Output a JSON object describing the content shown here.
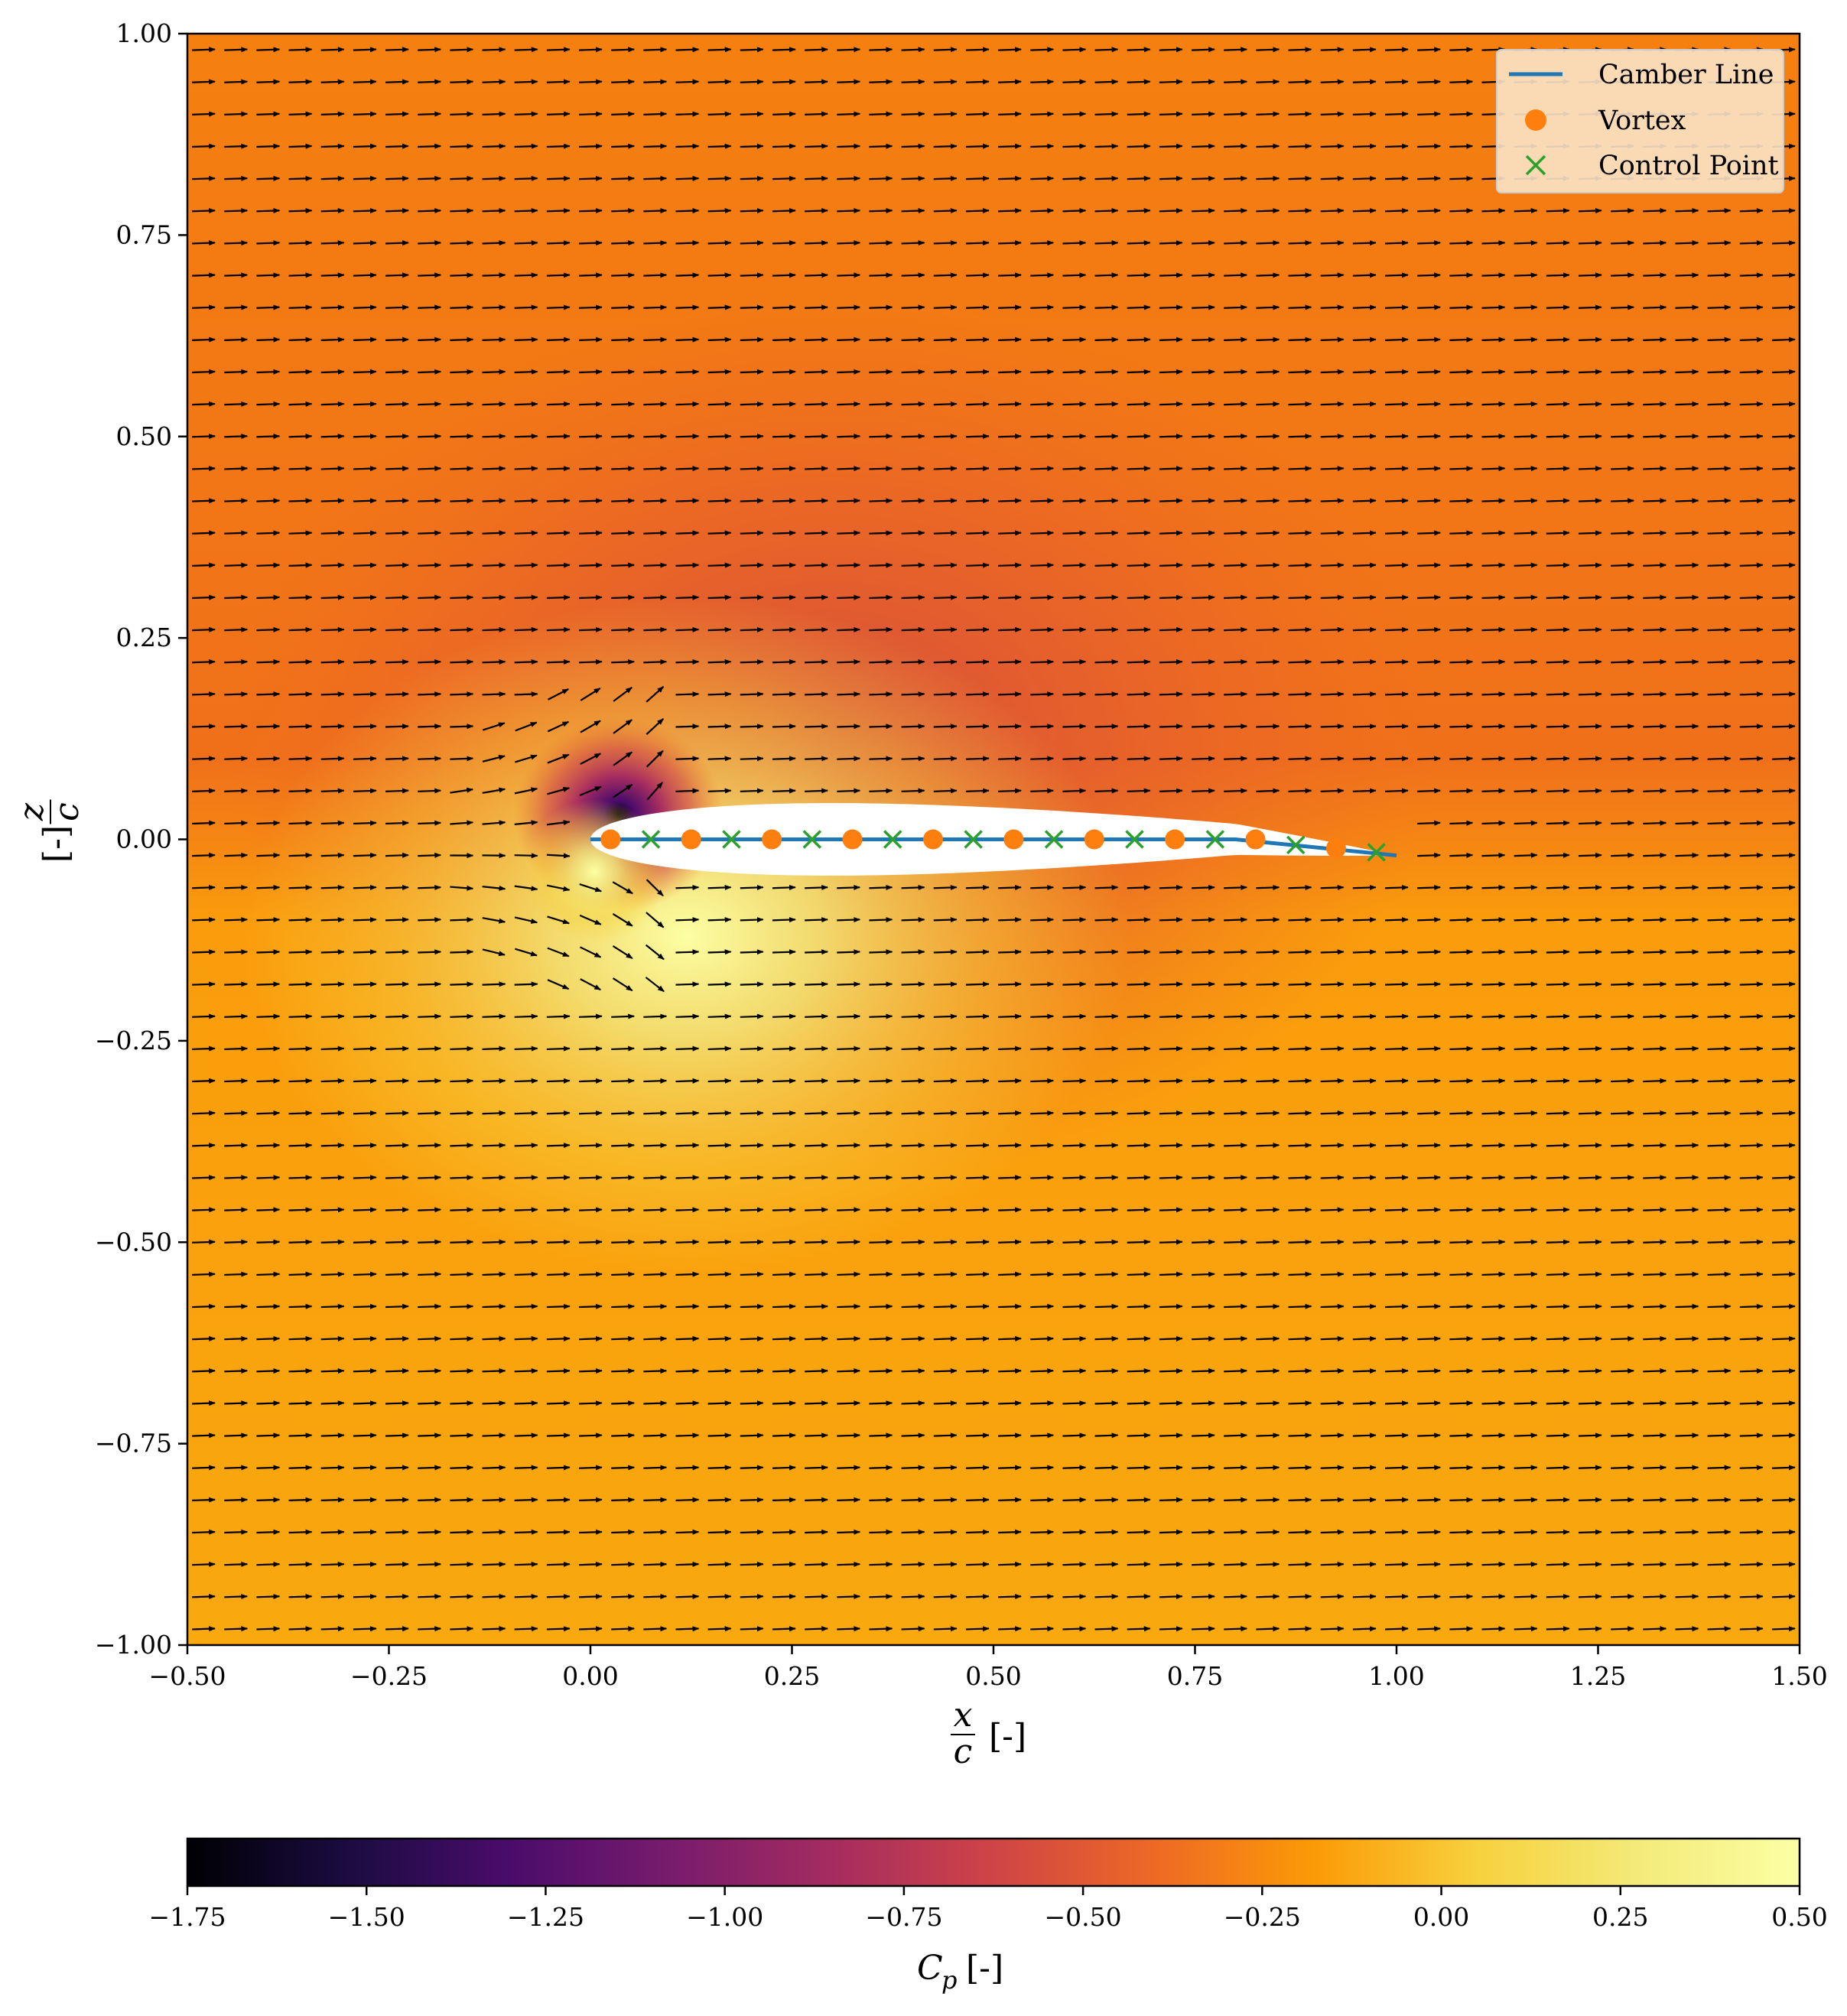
{
  "chart_data": {
    "type": "heatmap",
    "title": "",
    "xlabel": {
      "num": "x",
      "den": "c",
      "unit": "[-]"
    },
    "ylabel": {
      "num": "z",
      "den": "c",
      "unit": "[-]"
    },
    "xlim": [
      -0.5,
      1.5
    ],
    "ylim": [
      -1.0,
      1.0
    ],
    "xticks": [
      "−0.50",
      "−0.25",
      "0.00",
      "0.25",
      "0.50",
      "0.75",
      "1.00",
      "1.25",
      "1.50"
    ],
    "yticks": [
      "1.00",
      "0.75",
      "0.50",
      "0.25",
      "0.00",
      "−0.25",
      "−0.50",
      "−0.75",
      "−1.00"
    ],
    "colorbar": {
      "label": "C",
      "label_sub": "p",
      "unit": "[-]",
      "range": [
        -1.75,
        0.5
      ],
      "colormap": "inferno",
      "ticks": [
        "−1.75",
        "−1.50",
        "−1.25",
        "−1.00",
        "−0.75",
        "−0.50",
        "−0.25",
        "0.00",
        "0.25",
        "0.50"
      ]
    },
    "legend": {
      "position": "top-right",
      "entries": [
        {
          "name": "Camber Line",
          "marker": "line",
          "color": "#1f77b4"
        },
        {
          "name": "Vortex",
          "marker": "circle",
          "color": "#ff7f0e"
        },
        {
          "name": "Control Point",
          "marker": "x",
          "color": "#2ca02c"
        }
      ]
    },
    "camber_line": {
      "x": [
        0.0,
        0.05,
        0.1,
        0.2,
        0.3,
        0.4,
        0.5,
        0.6,
        0.7,
        0.8,
        0.85,
        0.9,
        0.95,
        1.0
      ],
      "y": [
        0.0,
        0.0,
        0.0,
        0.0,
        0.0,
        0.0,
        0.0,
        0.0,
        0.0,
        0.0,
        -0.005,
        -0.01,
        -0.015,
        -0.02
      ]
    },
    "vortices": {
      "x": [
        0.025,
        0.125,
        0.225,
        0.325,
        0.425,
        0.525,
        0.625,
        0.725,
        0.825,
        0.925
      ],
      "y": [
        0.0,
        0.0,
        0.0,
        0.0,
        0.0,
        0.0,
        0.0,
        0.0,
        0.0,
        -0.011
      ]
    },
    "control_points": {
      "x": [
        0.075,
        0.175,
        0.275,
        0.375,
        0.475,
        0.575,
        0.675,
        0.775,
        0.875,
        0.975
      ],
      "y": [
        0.0,
        0.0,
        0.0,
        0.0,
        0.0,
        0.0,
        0.0,
        0.0,
        -0.007,
        -0.016
      ]
    },
    "airfoil_thickness": 0.09,
    "freestream_angle_deg": 2.0,
    "quiver_spacing": {
      "dx": 0.04,
      "dz": 0.04
    }
  }
}
